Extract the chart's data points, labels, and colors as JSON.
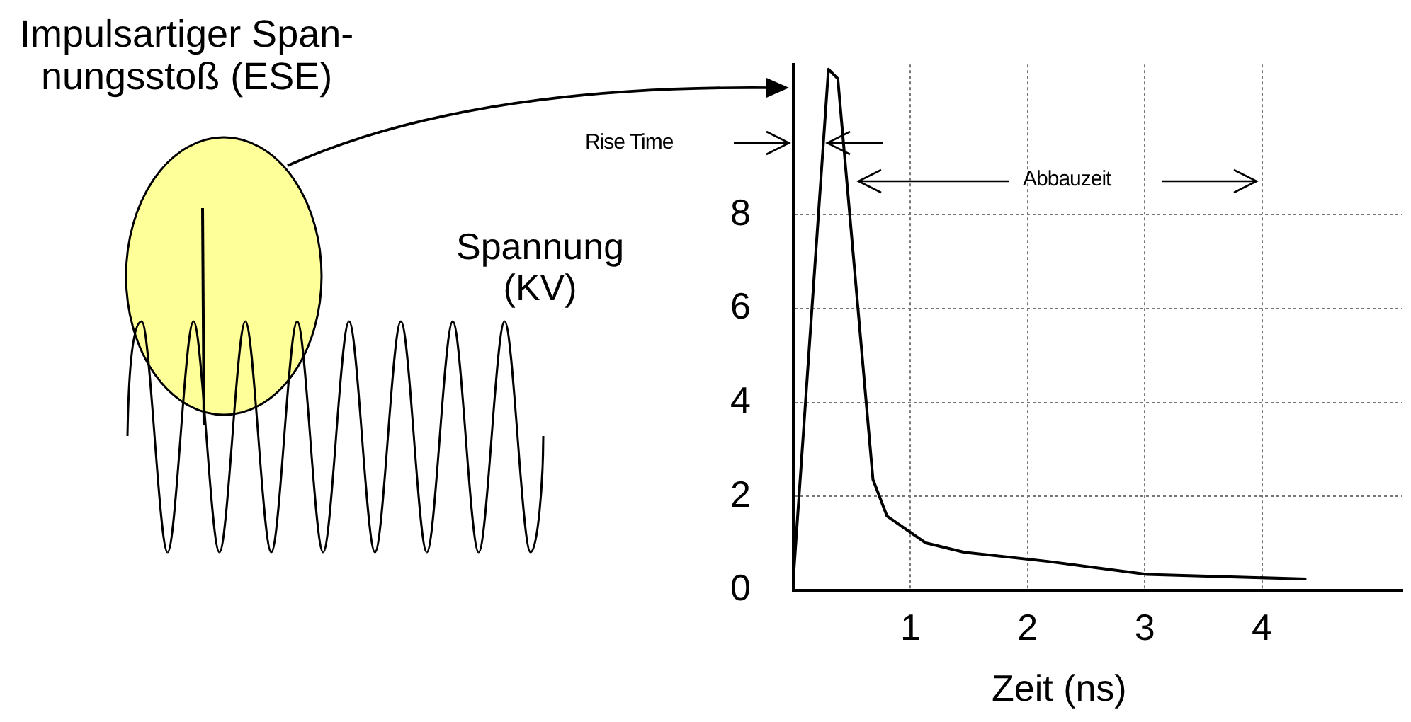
{
  "chart_data": {
    "type": "line",
    "xlabel": "Zeit (ns)",
    "ylabel": "Spannung\n(KV)",
    "xlim": [
      0,
      5.2
    ],
    "xticks": [
      1,
      2,
      3,
      4
    ],
    "ylim": [
      0,
      11.2
    ],
    "yticks": [
      0,
      2,
      4,
      6,
      8
    ],
    "grid": true,
    "legend": false,
    "marker": "none",
    "series": [
      {
        "color": "#000000",
        "x": [
          0,
          0.3,
          0.38,
          0.68,
          0.8,
          1.13,
          1.46,
          2.16,
          3.02,
          4.38
        ],
        "values": [
          0.24,
          11.1,
          10.9,
          2.36,
          1.58,
          1.01,
          0.81,
          0.62,
          0.34,
          0.24
        ]
      }
    ],
    "annotations": [
      "Impulsartiger Span-\nnungsstoß (ESE)",
      "Rise Time",
      "Abbauzeit"
    ]
  }
}
